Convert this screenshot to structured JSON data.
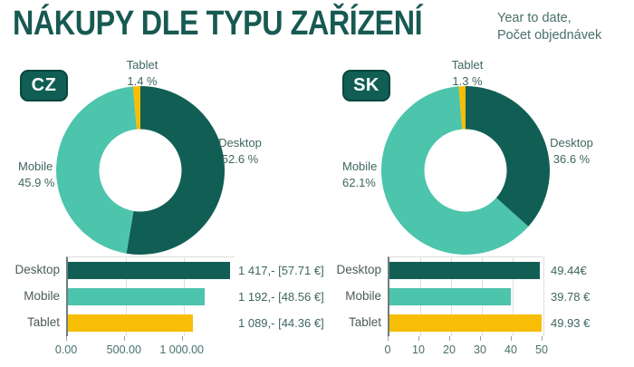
{
  "header": {
    "title": "NÁKUPY DLE TYPU ZAŘÍZENÍ",
    "subtitle_line1": "Year to date,",
    "subtitle_line2": "Počet objednávek"
  },
  "badges": {
    "cz": "CZ",
    "sk": "SK"
  },
  "palette": {
    "desktop": "#115E54",
    "mobile": "#4DC4AC",
    "tablet": "#F8BD05",
    "title_text": "#175A52",
    "chart_text": "#3E6661",
    "grid": "#DEDEDE",
    "axis": "#6E7F7B"
  },
  "chart_data": [
    {
      "id": "cz-donut",
      "type": "pie",
      "region": "CZ",
      "labels": [
        "Desktop",
        "Mobile",
        "Tablet"
      ],
      "values": [
        52.6,
        45.9,
        1.4
      ],
      "unit": "%",
      "colors": [
        "#115E54",
        "#4DC4AC",
        "#F8BD05"
      ],
      "callouts": {
        "tablet": {
          "name": "Tablet",
          "pct": "1.4 %"
        },
        "desktop": {
          "name": "Desktop",
          "pct": "52.6 %"
        },
        "mobile": {
          "name": "Mobile",
          "pct": "45.9 %"
        }
      }
    },
    {
      "id": "sk-donut",
      "type": "pie",
      "region": "SK",
      "labels": [
        "Desktop",
        "Mobile",
        "Tablet"
      ],
      "values": [
        36.6,
        62.1,
        1.3
      ],
      "unit": "%",
      "colors": [
        "#115E54",
        "#4DC4AC",
        "#F8BD05"
      ],
      "callouts": {
        "tablet": {
          "name": "Tablet",
          "pct": "1.3 %"
        },
        "desktop": {
          "name": "Desktop",
          "pct": "36.6 %"
        },
        "mobile": {
          "name": "Mobile",
          "pct": "62.1%"
        }
      }
    },
    {
      "id": "cz-bars",
      "type": "bar",
      "region": "CZ",
      "categories": [
        "Desktop",
        "Mobile",
        "Tablet"
      ],
      "values": [
        1417,
        1192,
        1089
      ],
      "value_labels": [
        "1 417,- [57.71 €]",
        "1 192,- [48.56 €]",
        "1 089,- [44.36 €]"
      ],
      "colors": [
        "#115E54",
        "#4DC4AC",
        "#F8BD05"
      ],
      "xlim": [
        0,
        1457
      ],
      "xticks": [
        0,
        500,
        1000
      ],
      "xtick_labels": [
        "0.00",
        "500.00",
        "1 000.00"
      ]
    },
    {
      "id": "sk-bars",
      "type": "bar",
      "region": "SK",
      "categories": [
        "Desktop",
        "Mobile",
        "Tablet"
      ],
      "values": [
        49.44,
        39.78,
        49.93
      ],
      "value_labels": [
        "49.44€",
        "39.78 €",
        "49.93 €"
      ],
      "colors": [
        "#115E54",
        "#4DC4AC",
        "#F8BD05"
      ],
      "xlim": [
        0,
        50.6
      ],
      "xticks": [
        0,
        10,
        20,
        30,
        40,
        50
      ],
      "xtick_labels": [
        "0",
        "10",
        "20",
        "30",
        "40",
        "50"
      ]
    }
  ]
}
